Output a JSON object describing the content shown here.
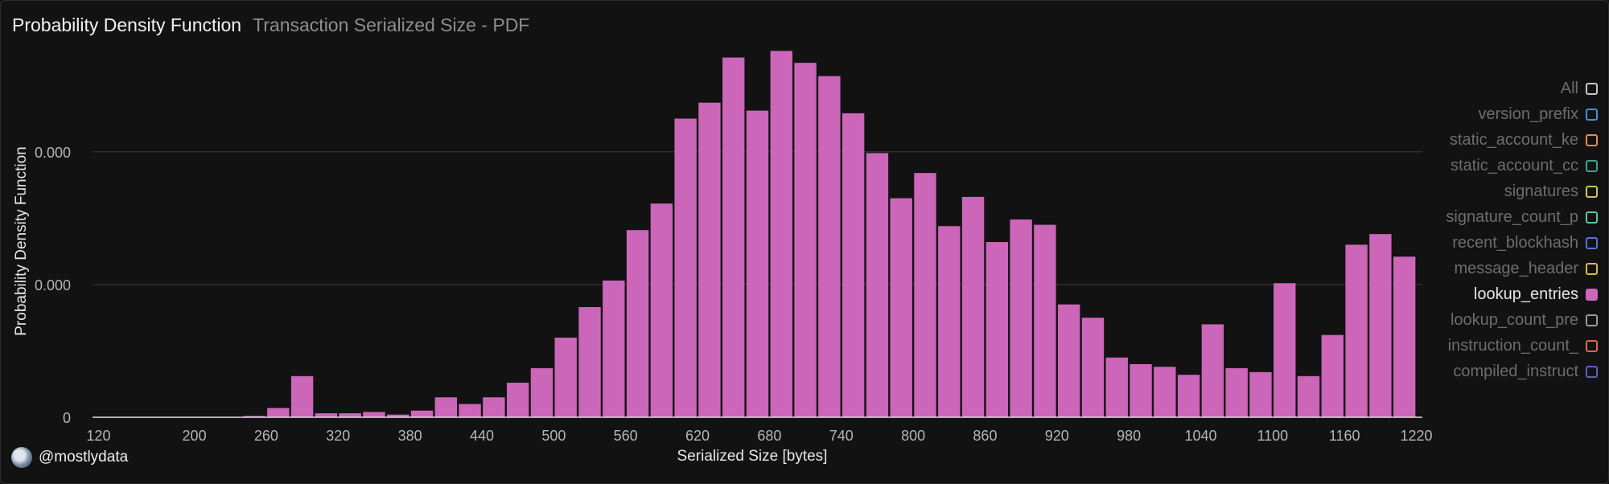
{
  "header": {
    "title": "Probability Density Function",
    "subtitle": "Transaction Serialized Size - PDF"
  },
  "legend": [
    {
      "label": "All",
      "color": "#c7c7c7",
      "active": false
    },
    {
      "label": "version_prefix",
      "color": "#4a90d9",
      "active": false
    },
    {
      "label": "static_account_ke",
      "color": "#e8894a",
      "active": false
    },
    {
      "label": "static_account_cc",
      "color": "#3aa58f",
      "active": false
    },
    {
      "label": "signatures",
      "color": "#c9c65a",
      "active": false
    },
    {
      "label": "signature_count_p",
      "color": "#58c9a6",
      "active": false
    },
    {
      "label": "recent_blockhash",
      "color": "#5b6fd6",
      "active": false
    },
    {
      "label": "message_header",
      "color": "#e0b64a",
      "active": false
    },
    {
      "label": "lookup_entries",
      "color": "#cc66b8",
      "active": true
    },
    {
      "label": "lookup_count_pre",
      "color": "#9a9a9a",
      "active": false
    },
    {
      "label": "instruction_count_",
      "color": "#e0674a",
      "active": false
    },
    {
      "label": "compiled_instruct",
      "color": "#5e5ec9",
      "active": false
    }
  ],
  "watermark": {
    "handle": "@mostlydata"
  },
  "chart_data": {
    "type": "bar",
    "title": "Probability Density Function",
    "subtitle": "Transaction Serialized Size - PDF",
    "xlabel": "Serialized Size [bytes]",
    "ylabel": "Probability Density Function",
    "bar_color": "#cc66b8",
    "grid": true,
    "legend_position": "right",
    "xlim": [
      115,
      1225
    ],
    "x_ticks": [
      120,
      200,
      260,
      320,
      380,
      440,
      500,
      560,
      620,
      680,
      740,
      800,
      860,
      920,
      980,
      1040,
      1100,
      1160,
      1220
    ],
    "y_ticks": [
      {
        "label": "0",
        "value": 0
      },
      {
        "label": "0.000",
        "value": 1
      },
      {
        "label": "0.000",
        "value": 2
      }
    ],
    "ylim": [
      0,
      2.78
    ],
    "bin_start": 240,
    "bin_width": 20,
    "values": [
      0.01,
      0.07,
      0.31,
      0.03,
      0.03,
      0.04,
      0.02,
      0.05,
      0.15,
      0.1,
      0.15,
      0.26,
      0.37,
      0.6,
      0.83,
      1.03,
      1.41,
      1.61,
      2.25,
      2.37,
      2.71,
      2.31,
      2.76,
      2.67,
      2.57,
      2.29,
      1.99,
      1.65,
      1.84,
      1.44,
      1.66,
      1.32,
      1.49,
      1.45,
      0.85,
      0.75,
      0.45,
      0.4,
      0.38,
      0.32,
      0.7,
      0.37,
      0.34,
      1.01,
      0.31,
      0.62,
      1.3,
      1.38,
      1.21
    ]
  }
}
